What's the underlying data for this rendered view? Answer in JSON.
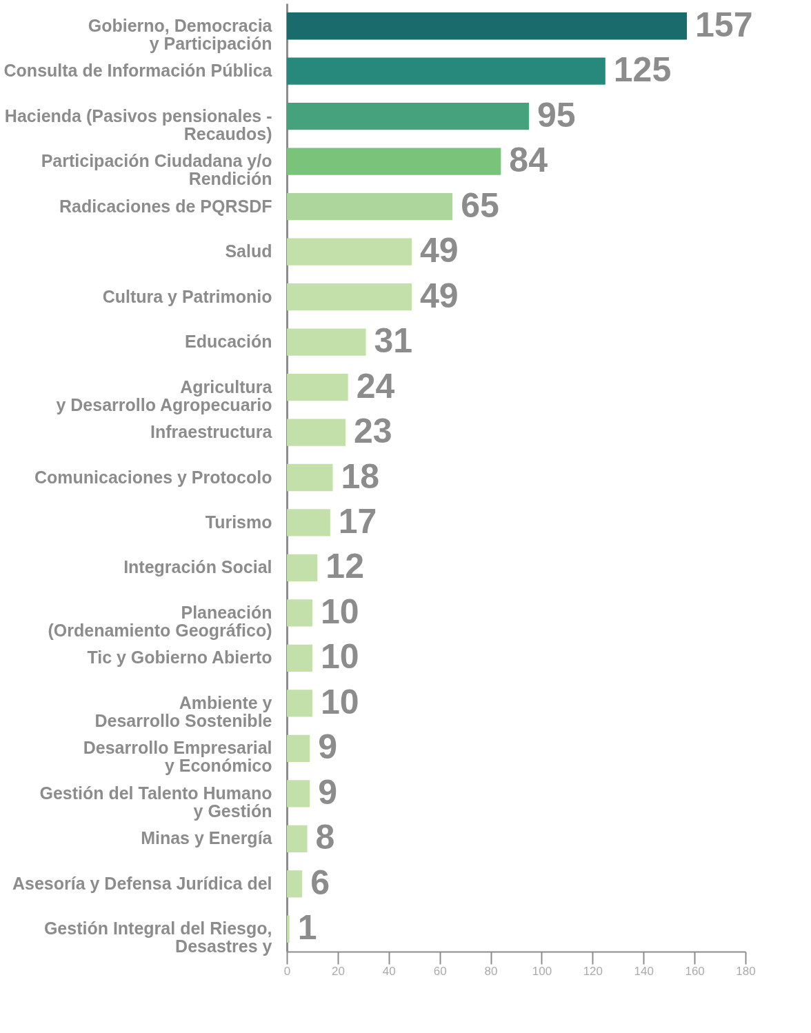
{
  "chart_data": {
    "type": "bar",
    "orientation": "horizontal",
    "categories": [
      "Gobierno, Democracia\ny Participación",
      "Consulta de Información Pública",
      "Hacienda (Pasivos pensionales -\nRecaudos)",
      "Participación Ciudadana y/o\nRendición",
      "Radicaciones de PQRSDF",
      "Salud",
      "Cultura y Patrimonio",
      "Educación",
      "Agricultura\ny Desarrollo Agropecuario",
      "Infraestructura",
      "Comunicaciones y Protocolo",
      "Turismo",
      "Integración Social",
      "Planeación\n(Ordenamiento Geográfico)",
      "Tic y Gobierno Abierto",
      "Ambiente y\nDesarrollo Sostenible",
      "Desarrollo Empresarial\ny Económico",
      "Gestión del Talento Humano\ny Gestión",
      "Minas y Energía",
      "Asesoría y Defensa Jurídica del",
      "Gestión Integral del Riesgo,\nDesastres y"
    ],
    "values": [
      157,
      125,
      95,
      84,
      65,
      49,
      49,
      31,
      24,
      23,
      18,
      17,
      12,
      10,
      10,
      10,
      9,
      9,
      8,
      6,
      1
    ],
    "colors": [
      "#1a6b6b",
      "#26897c",
      "#45a27c",
      "#79c47a",
      "#acd69c",
      "#c3e0ab",
      "#c3e0ab",
      "#c3e0ab",
      "#c3e0ab",
      "#c3e0ab",
      "#c3e0ab",
      "#c3e0ab",
      "#c3e0ab",
      "#c3e0ab",
      "#c3e0ab",
      "#c3e0ab",
      "#c3e0ab",
      "#c3e0ab",
      "#c3e0ab",
      "#c3e0ab",
      "#c3e0ab"
    ],
    "xlim": [
      0,
      180
    ],
    "xticks": [
      0,
      20,
      40,
      60,
      80,
      100,
      120,
      140,
      160,
      180
    ],
    "data_labels": true,
    "grid": false
  }
}
